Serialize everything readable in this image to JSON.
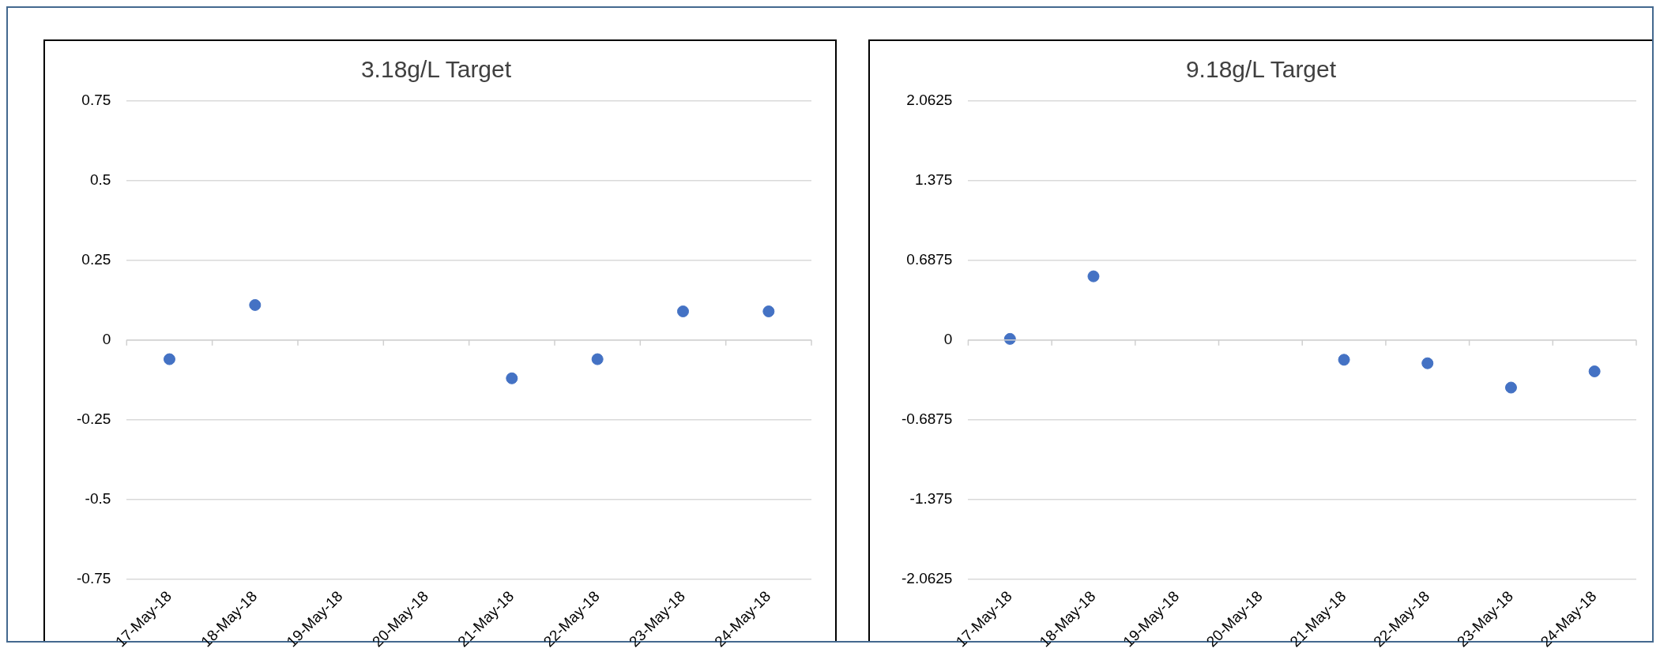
{
  "chart_data": [
    {
      "type": "scatter",
      "title": "3.18g/L Target",
      "categories": [
        "17-May-18",
        "18-May-18",
        "19-May-18",
        "20-May-18",
        "21-May-18",
        "22-May-18",
        "23-May-18",
        "24-May-18"
      ],
      "series": [
        {
          "color": "#4472c4",
          "values": [
            -0.06,
            0.11,
            null,
            null,
            -0.12,
            -0.06,
            0.09,
            0.09
          ]
        }
      ],
      "ylim": [
        -0.75,
        0.75
      ],
      "yticks": [
        -0.75,
        -0.5,
        -0.25,
        0,
        0.25,
        0.5,
        0.75
      ],
      "grid": "y",
      "legend": false,
      "marker": "circle"
    },
    {
      "type": "scatter",
      "title": "9.18g/L Target",
      "categories": [
        "17-May-18",
        "18-May-18",
        "19-May-18",
        "20-May-18",
        "21-May-18",
        "22-May-18",
        "23-May-18",
        "24-May-18"
      ],
      "series": [
        {
          "color": "#4472c4",
          "values": [
            0.01,
            0.55,
            null,
            null,
            -0.17,
            -0.2,
            -0.41,
            -0.27
          ]
        }
      ],
      "ylim": [
        -2.0625,
        2.0625
      ],
      "yticks": [
        -2.0625,
        -1.375,
        -0.6875,
        0,
        0.6875,
        1.375,
        2.0625
      ],
      "grid": "y",
      "legend": false,
      "marker": "circle"
    }
  ]
}
